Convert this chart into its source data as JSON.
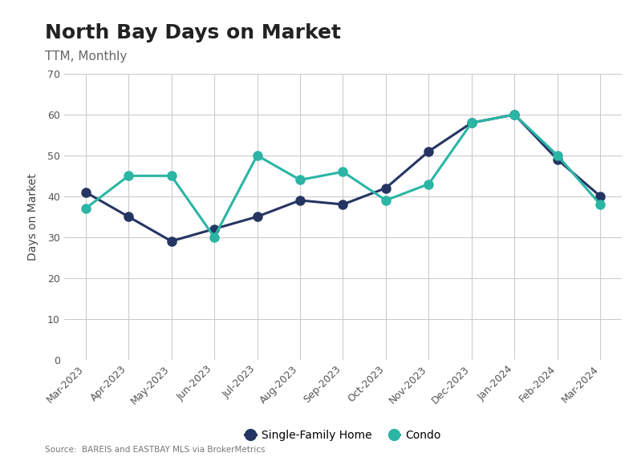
{
  "title": "North Bay Days on Market",
  "subtitle": "TTM, Monthly",
  "ylabel": "Days on Market",
  "source": "Source:  BAREIS and EASTBAY MLS via BrokerMetrics",
  "categories": [
    "Mar-2023",
    "Apr-2023",
    "May-2023",
    "Jun-2023",
    "Jul-2023",
    "Aug-2023",
    "Sep-2023",
    "Oct-2023",
    "Nov-2023",
    "Dec-2023",
    "Jan-2024",
    "Feb-2024",
    "Mar-2024"
  ],
  "single_family": [
    41,
    35,
    29,
    32,
    35,
    39,
    38,
    42,
    51,
    58,
    60,
    49,
    40
  ],
  "condo": [
    37,
    45,
    45,
    30,
    50,
    44,
    46,
    39,
    43,
    58,
    60,
    50,
    38
  ],
  "sfh_color": "#253563",
  "condo_color": "#2ab5a5",
  "background_color": "#ffffff",
  "grid_color": "#cccccc",
  "ylim": [
    0,
    70
  ],
  "yticks": [
    0,
    10,
    20,
    30,
    40,
    50,
    60,
    70
  ],
  "title_fontsize": 18,
  "subtitle_fontsize": 11,
  "legend_labels": [
    "Single-Family Home",
    "Condo"
  ],
  "marker_size": 8,
  "line_width": 2.2
}
